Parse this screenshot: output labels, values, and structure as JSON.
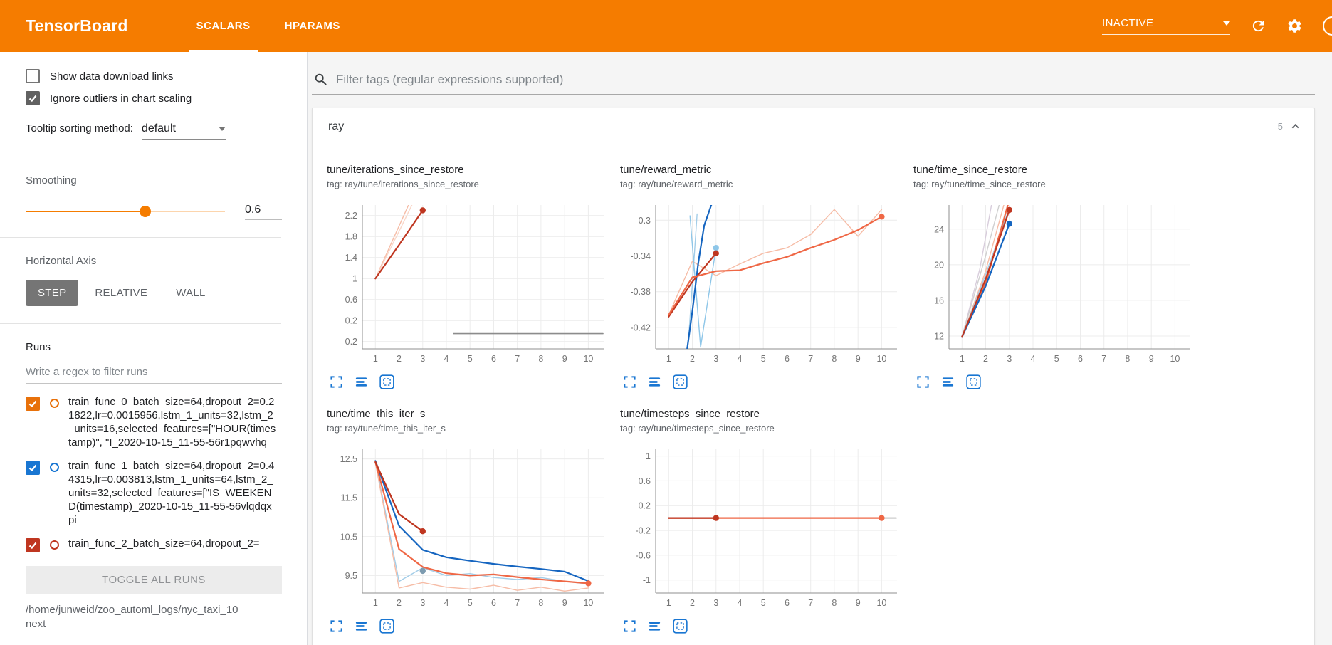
{
  "header": {
    "logo": "TensorBoard",
    "tabs": [
      {
        "label": "SCALARS",
        "active": true
      },
      {
        "label": "HPARAMS",
        "active": false
      }
    ],
    "status_dropdown": "INACTIVE",
    "accent_color": "#f57c00"
  },
  "sidebar": {
    "options": [
      {
        "label": "Show data download links",
        "checked": false
      },
      {
        "label": "Ignore outliers in chart scaling",
        "checked": true
      }
    ],
    "tooltip_sort": {
      "label": "Tooltip sorting method:",
      "value": "default"
    },
    "smoothing": {
      "label": "Smoothing",
      "value": "0.6",
      "percent": 60
    },
    "horizontal_axis": {
      "label": "Horizontal Axis",
      "options": [
        "STEP",
        "RELATIVE",
        "WALL"
      ],
      "selected": "STEP"
    },
    "runs": {
      "label": "Runs",
      "filter_placeholder": "Write a regex to filter runs",
      "items": [
        {
          "name": "train_func_0_batch_size=64,dropout_2=0.21822,lr=0.0015956,lstm_1_units=32,lstm_2_units=16,selected_features=[\"HOUR(timestamp)\", \"I_2020-10-15_11-55-56r1pqwvhq",
          "checked": true,
          "color": "#e8710a"
        },
        {
          "name": "train_func_1_batch_size=64,dropout_2=0.44315,lr=0.003813,lstm_1_units=64,lstm_2_units=32,selected_features=[\"IS_WEEKEND(timestamp)_2020-10-15_11-55-56vlqdqxpi",
          "checked": true,
          "color": "#1976d2"
        },
        {
          "name": "train_func_2_batch_size=64,dropout_2=",
          "checked": true,
          "color": "#bf3620"
        }
      ],
      "toggle_all_label": "TOGGLE ALL RUNS",
      "log_path": "/home/junweid/zoo_automl_logs/nyc_taxi_10next"
    }
  },
  "main": {
    "filter_placeholder": "Filter tags (regular expressions supported)",
    "category": {
      "name": "ray",
      "count": "5"
    },
    "chart_toolbar_icons": [
      "expand-icon",
      "runs-table-icon",
      "fit-domain-icon"
    ]
  },
  "chart_data": [
    {
      "type": "line",
      "title": "tune/iterations_since_restore",
      "tag_label": "tag: ray/tune/iterations_since_restore",
      "xticks": [
        1,
        2,
        3,
        4,
        5,
        6,
        7,
        8,
        9,
        10
      ],
      "xdomain": [
        0.45,
        10.65
      ],
      "yticks": [
        -0.2,
        0.2,
        0.6,
        1,
        1.4,
        1.8,
        2.2
      ],
      "ydomain": [
        -0.34,
        2.4
      ],
      "series": [
        {
          "name": "run0-raw",
          "color": "#f6bca6",
          "width": 1.4,
          "points": [
            [
              1,
              1
            ],
            [
              2,
              2
            ],
            [
              3,
              3
            ]
          ]
        },
        {
          "name": "run1-raw",
          "color": "#f9d7c9",
          "width": 1.4,
          "points": [
            [
              1,
              1
            ],
            [
              2,
              1.9
            ],
            [
              3,
              2.82
            ]
          ]
        },
        {
          "name": "zero-baseline",
          "color": "#8c8c8c",
          "width": 1.6,
          "points": [
            [
              4.3,
              -0.05
            ],
            [
              10.62,
              -0.05
            ]
          ]
        },
        {
          "name": "run2-smoothed",
          "color": "#bf3620",
          "width": 2.2,
          "dot": true,
          "points": [
            [
              1,
              1
            ],
            [
              2,
              1.64
            ],
            [
              3,
              2.3
            ]
          ]
        }
      ]
    },
    {
      "type": "line",
      "title": "tune/reward_metric",
      "tag_label": "tag: ray/tune/reward_metric",
      "xticks": [
        1,
        2,
        3,
        4,
        5,
        6,
        7,
        8,
        9,
        10
      ],
      "xdomain": [
        0.45,
        10.65
      ],
      "yticks": [
        -0.42,
        -0.38,
        -0.34,
        -0.3
      ],
      "ydomain": [
        -0.444,
        -0.283
      ],
      "series": [
        {
          "name": "run0-raw",
          "color": "#f6bca6",
          "width": 1.4,
          "points": [
            [
              1,
              -0.406
            ],
            [
              2,
              -0.346
            ],
            [
              3,
              -0.362
            ],
            [
              4,
              -0.349
            ],
            [
              5,
              -0.337
            ],
            [
              6,
              -0.331
            ],
            [
              7,
              -0.316
            ],
            [
              8,
              -0.288
            ],
            [
              9,
              -0.318
            ],
            [
              10,
              -0.288
            ]
          ]
        },
        {
          "name": "run1-raw-b",
          "color": "#a3cde8",
          "width": 1.4,
          "points": [
            [
              1.85,
              -0.43
            ],
            [
              2.2,
              -0.293
            ]
          ]
        },
        {
          "name": "run1-raw-a",
          "color": "#8ec6e8",
          "width": 1.4,
          "dot": true,
          "points": [
            [
              1.9,
              -0.295
            ],
            [
              2.35,
              -0.442
            ],
            [
              3,
              -0.331
            ]
          ]
        },
        {
          "name": "run1-smoothed",
          "color": "#1565c0",
          "width": 2.2,
          "points": [
            [
              1.75,
              -0.45
            ],
            [
              2.0,
              -0.402
            ],
            [
              2.25,
              -0.348
            ],
            [
              2.5,
              -0.306
            ],
            [
              2.8,
              -0.283
            ],
            [
              3.1,
              -0.27
            ]
          ]
        },
        {
          "name": "run2-smoothed",
          "color": "#bf3620",
          "width": 2.2,
          "dot": true,
          "points": [
            [
              1,
              -0.408
            ],
            [
              2,
              -0.369
            ],
            [
              3,
              -0.337
            ]
          ]
        },
        {
          "name": "run0-smoothed",
          "color": "#ef6745",
          "width": 2.2,
          "dot": true,
          "points": [
            [
              1,
              -0.406
            ],
            [
              2,
              -0.364
            ],
            [
              3,
              -0.357
            ],
            [
              4,
              -0.356
            ],
            [
              5,
              -0.348
            ],
            [
              6,
              -0.341
            ],
            [
              7,
              -0.331
            ],
            [
              8,
              -0.322
            ],
            [
              9,
              -0.311
            ],
            [
              10,
              -0.296
            ]
          ]
        }
      ]
    },
    {
      "type": "line",
      "title": "tune/time_since_restore",
      "tag_label": "tag: ray/tune/time_since_restore",
      "xticks": [
        1,
        2,
        3,
        4,
        5,
        6,
        7,
        8,
        9,
        10
      ],
      "xdomain": [
        0.45,
        10.65
      ],
      "yticks": [
        12,
        16,
        20,
        24
      ],
      "ydomain": [
        10.56,
        26.7
      ],
      "series": [
        {
          "name": "faint-run-a",
          "color": "#d8cddc",
          "width": 1.4,
          "points": [
            [
              1,
              11.9
            ],
            [
              1.75,
              19.5
            ],
            [
              2.3,
              27.5
            ]
          ]
        },
        {
          "name": "faint-run-b",
          "color": "#cfcfcf",
          "width": 1.4,
          "points": [
            [
              1,
              11.9
            ],
            [
              2,
              21
            ],
            [
              2.65,
              27.5
            ]
          ]
        },
        {
          "name": "run0-raw",
          "color": "#f6bca6",
          "width": 1.4,
          "points": [
            [
              1,
              11.9
            ],
            [
              2,
              19.3
            ],
            [
              2.85,
              27.5
            ]
          ]
        },
        {
          "name": "run1-raw",
          "color": "#a3cde8",
          "width": 1.4,
          "points": [
            [
              1,
              11.9
            ],
            [
              2,
              18.9
            ],
            [
              3,
              26.4
            ]
          ]
        },
        {
          "name": "run0-smoothed",
          "color": "#ef6745",
          "width": 2.2,
          "points": [
            [
              1,
              11.9
            ],
            [
              2,
              17.9
            ],
            [
              3,
              27.3
            ]
          ]
        },
        {
          "name": "run1-smoothed",
          "color": "#1565c0",
          "width": 2.2,
          "dot": true,
          "points": [
            [
              1,
              11.9
            ],
            [
              2,
              17.6
            ],
            [
              3,
              24.6
            ]
          ]
        },
        {
          "name": "run2-smoothed",
          "color": "#bf3620",
          "width": 2.2,
          "dot": true,
          "points": [
            [
              1,
              11.9
            ],
            [
              2,
              18.4
            ],
            [
              3,
              26.15
            ]
          ]
        }
      ]
    },
    {
      "type": "line",
      "title": "tune/time_this_iter_s",
      "tag_label": "tag: ray/tune/time_this_iter_s",
      "xticks": [
        1,
        2,
        3,
        4,
        5,
        6,
        7,
        8,
        9,
        10
      ],
      "xdomain": [
        0.45,
        10.65
      ],
      "yticks": [
        9.5,
        10.5,
        11.5,
        12.5
      ],
      "ydomain": [
        9.05,
        12.75
      ],
      "series": [
        {
          "name": "run1-raw",
          "color": "#a3cde8",
          "width": 1.4,
          "points": [
            [
              1,
              12.45
            ],
            [
              2,
              9.35
            ],
            [
              3,
              9.7
            ],
            [
              4,
              9.5
            ],
            [
              5,
              9.55
            ],
            [
              6,
              9.45
            ],
            [
              7,
              9.4
            ],
            [
              8,
              9.45
            ],
            [
              9,
              9.35
            ],
            [
              10,
              9.28
            ]
          ]
        },
        {
          "name": "run0-raw",
          "color": "#f6bca6",
          "width": 1.4,
          "points": [
            [
              1,
              12.4
            ],
            [
              2,
              9.18
            ],
            [
              3,
              9.32
            ],
            [
              4,
              9.2
            ],
            [
              5,
              9.15
            ],
            [
              6,
              9.25
            ],
            [
              7,
              9.12
            ],
            [
              8,
              9.2
            ],
            [
              9,
              9.1
            ],
            [
              10,
              9.18
            ]
          ]
        },
        {
          "name": "run1-smoothed",
          "color": "#1565c0",
          "width": 2.2,
          "points": [
            [
              1,
              12.45
            ],
            [
              2,
              10.78
            ],
            [
              3,
              10.16
            ],
            [
              4,
              9.97
            ],
            [
              5,
              9.88
            ],
            [
              6,
              9.8
            ],
            [
              7,
              9.73
            ],
            [
              8,
              9.67
            ],
            [
              9,
              9.6
            ],
            [
              10,
              9.36
            ]
          ]
        },
        {
          "name": "run0-smoothed",
          "color": "#ef6745",
          "width": 2.2,
          "dot": true,
          "points": [
            [
              1,
              12.42
            ],
            [
              2,
              10.18
            ],
            [
              3,
              9.72
            ],
            [
              4,
              9.56
            ],
            [
              5,
              9.5
            ],
            [
              6,
              9.53
            ],
            [
              7,
              9.46
            ],
            [
              8,
              9.4
            ],
            [
              9,
              9.35
            ],
            [
              10,
              9.3
            ]
          ]
        },
        {
          "name": "run2-smoothed",
          "color": "#bf3620",
          "width": 2.2,
          "dot": true,
          "points": [
            [
              1,
              12.42
            ],
            [
              2,
              11.08
            ],
            [
              3,
              10.64
            ]
          ]
        },
        {
          "name": "marker-step3",
          "color": "#7d9bb0",
          "width": 2,
          "dot": true,
          "points": [
            [
              3,
              9.62
            ]
          ]
        }
      ]
    },
    {
      "type": "line",
      "title": "tune/timesteps_since_restore",
      "tag_label": "tag: ray/tune/timesteps_since_restore",
      "xticks": [
        1,
        2,
        3,
        4,
        5,
        6,
        7,
        8,
        9,
        10
      ],
      "xdomain": [
        0.45,
        10.65
      ],
      "yticks": [
        -1,
        -0.6,
        -0.2,
        0.2,
        0.6,
        1
      ],
      "ydomain": [
        -1.21,
        1.11
      ],
      "series": [
        {
          "name": "zero-baseline",
          "color": "#9a9a9a",
          "width": 1.6,
          "points": [
            [
              1,
              0
            ],
            [
              10.62,
              0
            ]
          ]
        },
        {
          "name": "run0-smoothed",
          "color": "#ef6745",
          "width": 2.2,
          "dot": true,
          "points": [
            [
              1,
              0
            ],
            [
              10,
              0
            ]
          ]
        },
        {
          "name": "run2-smoothed",
          "color": "#bf3620",
          "width": 2.2,
          "dot": true,
          "points": [
            [
              1,
              0
            ],
            [
              3,
              0
            ]
          ]
        }
      ]
    }
  ]
}
